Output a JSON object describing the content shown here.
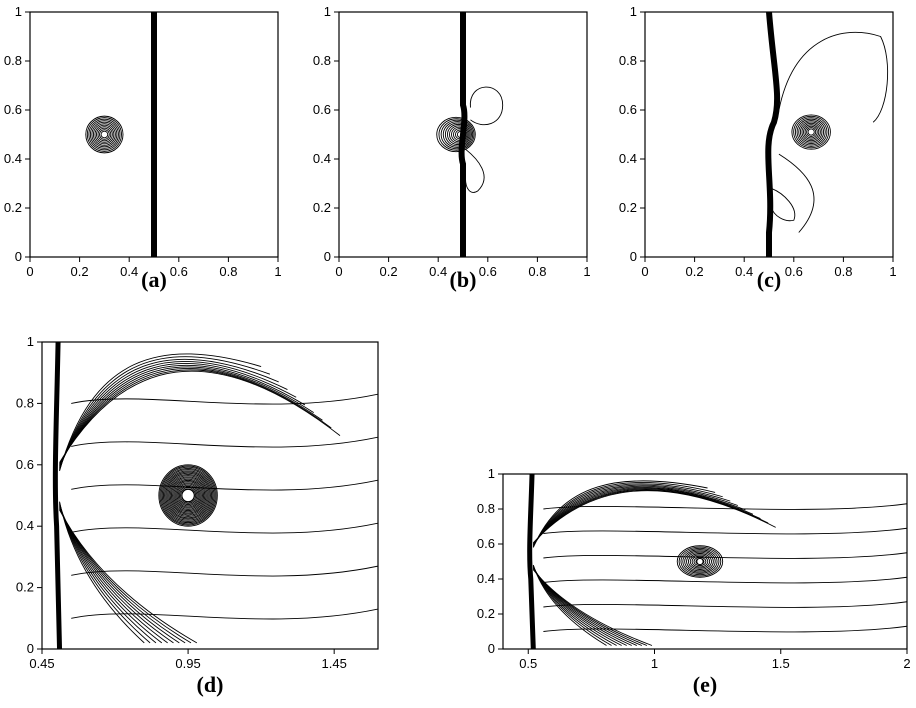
{
  "figure": {
    "colors": {
      "ink": "#000000",
      "background": "#ffffff"
    }
  },
  "chart_data": [
    {
      "type": "contour",
      "panel": "a",
      "caption": "(a)",
      "xlim": [
        0,
        1
      ],
      "ylim": [
        0,
        1
      ],
      "xticks": [
        "0",
        "0.2",
        "0.4",
        "0.6",
        "0.8",
        "1"
      ],
      "yticks": [
        "0",
        "0.2",
        "0.4",
        "0.6",
        "0.8",
        "1"
      ],
      "shock_x": 0.5,
      "vortex_center": [
        0.3,
        0.5
      ],
      "vortex_radius": 0.075
    },
    {
      "type": "contour",
      "panel": "b",
      "caption": "(b)",
      "xlim": [
        0,
        1
      ],
      "ylim": [
        0,
        1
      ],
      "xticks": [
        "0",
        "0.2",
        "0.4",
        "0.6",
        "0.8",
        "1"
      ],
      "yticks": [
        "0",
        "0.2",
        "0.4",
        "0.6",
        "0.8",
        "1"
      ],
      "shock_x": 0.5,
      "vortex_center": [
        0.49,
        0.5
      ],
      "vortex_radius": 0.07
    },
    {
      "type": "contour",
      "panel": "c",
      "caption": "(c)",
      "xlim": [
        0,
        1
      ],
      "ylim": [
        0,
        1
      ],
      "xticks": [
        "0",
        "0.2",
        "0.4",
        "0.6",
        "0.8",
        "1"
      ],
      "yticks": [
        "0",
        "0.2",
        "0.4",
        "0.6",
        "0.8",
        "1"
      ],
      "shock_x": 0.5,
      "vortex_center": [
        0.67,
        0.51
      ],
      "vortex_radius": 0.07
    },
    {
      "type": "contour",
      "panel": "d",
      "caption": "(d)",
      "xlim": [
        0.45,
        1.6
      ],
      "ylim": [
        0,
        1
      ],
      "xticks": [
        "0.45",
        "0.95",
        "1.45"
      ],
      "xtick_values": [
        0.45,
        0.95,
        1.45
      ],
      "yticks": [
        "0",
        "0.2",
        "0.4",
        "0.6",
        "0.8",
        "1"
      ],
      "shock_x": 0.5,
      "vortex_center": [
        0.95,
        0.5
      ],
      "vortex_radius": 0.1
    },
    {
      "type": "contour",
      "panel": "e",
      "caption": "(e)",
      "xlim": [
        0.4,
        2
      ],
      "ylim": [
        0,
        1
      ],
      "xticks": [
        "0.5",
        "1",
        "1.5",
        "2"
      ],
      "xtick_values": [
        0.5,
        1,
        1.5,
        2
      ],
      "yticks": [
        "0",
        "0.2",
        "0.4",
        "0.6",
        "0.8",
        "1"
      ],
      "shock_x": 0.51,
      "vortex_center": [
        1.18,
        0.5
      ],
      "vortex_radius": 0.09
    }
  ]
}
